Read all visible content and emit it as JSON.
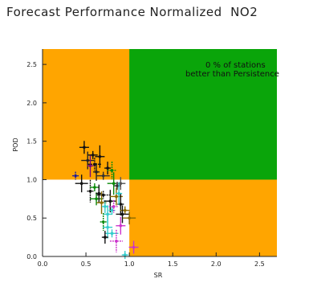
{
  "chart_data": {
    "type": "scatter",
    "title": "Forecast Performance Normalized  NO2",
    "xlabel": "SR",
    "ylabel": "POD",
    "xlim": [
      0,
      2.7
    ],
    "ylim": [
      0,
      2.7
    ],
    "xticks": [
      "0.0",
      "0.5",
      "1.0",
      "1.5",
      "2.0",
      "2.5"
    ],
    "yticks": [
      "0.0",
      "0.5",
      "1.0",
      "1.5",
      "2.0",
      "2.5"
    ],
    "annotation": [
      "0 % of stations",
      "better than Persistence"
    ],
    "regions": {
      "upper_right_color": "#0aa50a",
      "outer_color": "#ffa500",
      "lower_left_color": "#ffffff",
      "split": [
        1.0,
        1.0
      ]
    },
    "points": [
      {
        "x": 0.38,
        "y": 1.05,
        "c": "#1a1a9e"
      },
      {
        "x": 0.48,
        "y": 1.42,
        "c": "#111111"
      },
      {
        "x": 0.52,
        "y": 1.25,
        "c": "#222222"
      },
      {
        "x": 0.55,
        "y": 1.18,
        "c": "#7a0a7a"
      },
      {
        "x": 0.58,
        "y": 1.32,
        "c": "#111111"
      },
      {
        "x": 0.6,
        "y": 1.2,
        "c": "#111111"
      },
      {
        "x": 0.62,
        "y": 1.1,
        "c": "#222222"
      },
      {
        "x": 0.66,
        "y": 1.3,
        "c": "#111111"
      },
      {
        "x": 0.7,
        "y": 1.05,
        "c": "#333333"
      },
      {
        "x": 0.75,
        "y": 1.15,
        "c": "#111111"
      },
      {
        "x": 0.8,
        "y": 1.12,
        "c": "#0a8a0a"
      },
      {
        "x": 0.82,
        "y": 0.95,
        "c": "#0a8a0a"
      },
      {
        "x": 0.86,
        "y": 0.92,
        "c": "#333333"
      },
      {
        "x": 0.9,
        "y": 0.95,
        "c": "#555555"
      },
      {
        "x": 0.45,
        "y": 0.95,
        "c": "#111111"
      },
      {
        "x": 0.55,
        "y": 0.85,
        "c": "#111111"
      },
      {
        "x": 0.6,
        "y": 0.9,
        "c": "#0a8a0a"
      },
      {
        "x": 0.62,
        "y": 0.75,
        "c": "#0a8a0a"
      },
      {
        "x": 0.65,
        "y": 0.82,
        "c": "#111111"
      },
      {
        "x": 0.68,
        "y": 0.7,
        "c": "#8a6a00"
      },
      {
        "x": 0.7,
        "y": 0.8,
        "c": "#111111"
      },
      {
        "x": 0.72,
        "y": 0.65,
        "c": "#33cccc"
      },
      {
        "x": 0.75,
        "y": 0.55,
        "c": "#33cccc"
      },
      {
        "x": 0.78,
        "y": 0.72,
        "c": "#111111"
      },
      {
        "x": 0.8,
        "y": 0.6,
        "c": "#33cccc"
      },
      {
        "x": 0.82,
        "y": 0.65,
        "c": "#cc33cc"
      },
      {
        "x": 0.85,
        "y": 0.78,
        "c": "#8a6a00"
      },
      {
        "x": 0.9,
        "y": 0.68,
        "c": "#111111"
      },
      {
        "x": 0.95,
        "y": 0.6,
        "c": "#8a6a00"
      },
      {
        "x": 1.0,
        "y": 0.5,
        "c": "#8a6a00"
      },
      {
        "x": 0.7,
        "y": 0.45,
        "c": "#0a8a0a"
      },
      {
        "x": 0.75,
        "y": 0.38,
        "c": "#33cccc"
      },
      {
        "x": 0.8,
        "y": 0.3,
        "c": "#33cccc"
      },
      {
        "x": 0.72,
        "y": 0.25,
        "c": "#111111"
      },
      {
        "x": 0.9,
        "y": 0.4,
        "c": "#cc33cc"
      },
      {
        "x": 0.85,
        "y": 0.2,
        "c": "#cc33cc"
      },
      {
        "x": 0.95,
        "y": 0.02,
        "c": "#33cccc"
      },
      {
        "x": 1.05,
        "y": 0.12,
        "c": "#cc33cc"
      },
      {
        "x": 0.92,
        "y": 0.55,
        "c": "#111111"
      },
      {
        "x": 0.88,
        "y": 0.82,
        "c": "#33cccc"
      }
    ]
  }
}
